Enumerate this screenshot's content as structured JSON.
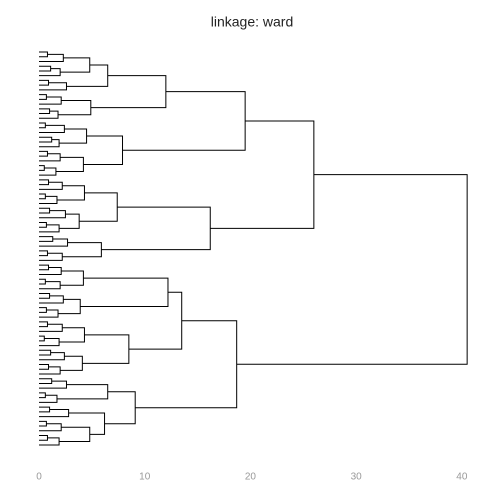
{
  "chart_data": {
    "type": "dendrogram",
    "title": "linkage: ward",
    "tree": [
      40.5,
      [
        26.0,
        [
          19.5,
          [
            12.0,
            [
              6.5,
              [
                4.8,
                [
                  2.3,
                  [
                    0.8,
                    null,
                    null
                  ],
                  null
                ],
                [
                  2.0,
                  [
                    1.1,
                    null,
                    null
                  ],
                  null
                ]
              ],
              [
                2.6,
                [
                  0.9,
                  null,
                  null
                ],
                null
              ]
            ],
            [
              4.9,
              [
                2.1,
                [
                  0.7,
                  null,
                  null
                ],
                null
              ],
              [
                1.8,
                [
                  1.0,
                  null,
                  null
                ],
                null
              ]
            ]
          ],
          [
            7.9,
            [
              4.5,
              [
                2.4,
                [
                  0.6,
                  null,
                  null
                ],
                null
              ],
              [
                1.9,
                [
                  1.2,
                  null,
                  null
                ],
                null
              ]
            ],
            [
              4.2,
              [
                2.0,
                [
                  0.8,
                  null,
                  null
                ],
                null
              ],
              [
                1.6,
                [
                  0.5,
                  null,
                  null
                ],
                null
              ]
            ]
          ]
        ],
        [
          16.2,
          [
            7.4,
            [
              4.3,
              [
                2.2,
                [
                  0.9,
                  null,
                  null
                ],
                null
              ],
              [
                1.7,
                [
                  0.6,
                  null,
                  null
                ],
                null
              ]
            ],
            [
              3.8,
              [
                2.5,
                [
                  1.0,
                  null,
                  null
                ],
                null
              ],
              [
                1.9,
                [
                  0.7,
                  null,
                  null
                ],
                null
              ]
            ]
          ],
          [
            5.9,
            [
              2.7,
              [
                1.3,
                null,
                null
              ],
              null
            ],
            [
              2.2,
              [
                0.8,
                null,
                null
              ],
              null
            ]
          ]
        ]
      ],
      [
        18.7,
        [
          13.5,
          [
            12.2,
            [
              4.2,
              [
                2.1,
                [
                  0.9,
                  null,
                  null
                ],
                null
              ],
              [
                2.0,
                [
                  0.6,
                  null,
                  null
                ],
                null
              ]
            ],
            [
              3.9,
              [
                2.3,
                [
                  1.0,
                  null,
                  null
                ],
                null
              ],
              [
                1.8,
                [
                  0.7,
                  null,
                  null
                ],
                null
              ]
            ]
          ],
          [
            8.5,
            [
              4.3,
              [
                2.2,
                [
                  0.8,
                  null,
                  null
                ],
                null
              ],
              [
                1.9,
                [
                  0.5,
                  null,
                  null
                ],
                null
              ]
            ],
            [
              4.1,
              [
                2.4,
                [
                  1.1,
                  null,
                  null
                ],
                null
              ],
              [
                2.0,
                [
                  0.9,
                  null,
                  null
                ],
                null
              ]
            ]
          ]
        ],
        [
          9.1,
          [
            6.5,
            [
              2.6,
              [
                1.2,
                null,
                null
              ],
              null
            ],
            [
              1.7,
              [
                0.6,
                null,
                null
              ],
              null
            ]
          ],
          [
            6.2,
            [
              2.8,
              [
                1.0,
                null,
                null
              ],
              null
            ],
            [
              4.8,
              [
                2.1,
                [
                  0.7,
                  null,
                  null
                ],
                null
              ],
              [
                1.9,
                [
                  0.8,
                  null,
                  null
                ],
                null
              ]
            ]
          ]
        ]
      ]
    ],
    "color": "#000000",
    "xlim": [
      0,
      42
    ],
    "xticks": [
      0,
      10,
      20,
      30,
      40
    ]
  }
}
